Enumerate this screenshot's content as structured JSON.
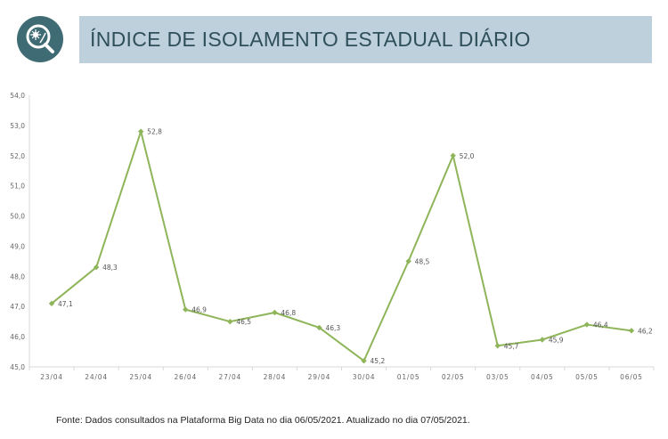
{
  "header": {
    "logo_icon": "virus-search-icon",
    "title": "ÍNDICE DE ISOLAMENTO ESTADUAL DIÁRIO"
  },
  "colors": {
    "accent": "#8fb55a",
    "title_bar": "#bdd0db",
    "logo": "#3f6b74"
  },
  "chart_data": {
    "type": "line",
    "title": "",
    "xlabel": "",
    "ylabel": "",
    "categories": [
      "23/04",
      "24/04",
      "25/04",
      "26/04",
      "27/04",
      "28/04",
      "29/04",
      "30/04",
      "01/05",
      "02/05",
      "03/05",
      "04/05",
      "05/05",
      "06/05"
    ],
    "series": [
      {
        "values": [
          47.1,
          48.3,
          52.8,
          46.9,
          46.5,
          46.8,
          46.3,
          45.2,
          48.5,
          52.0,
          45.7,
          45.9,
          46.4,
          46.2
        ],
        "labels": [
          "47,1",
          "48,3",
          "52,8",
          "46,9",
          "46,5",
          "46,8",
          "46,3",
          "45,2",
          "48,5",
          "52,0",
          "45,7",
          "45,9",
          "46,4",
          "46,2"
        ]
      }
    ],
    "ylim": [
      45,
      54
    ],
    "yticks": [
      45,
      46,
      47,
      48,
      49,
      50,
      51,
      52,
      53,
      54
    ],
    "ytick_labels": [
      "45,0",
      "46,0",
      "47,0",
      "48,0",
      "49,0",
      "50,0",
      "51,0",
      "52,0",
      "53,0",
      "54,0"
    ],
    "grid": false,
    "legend": "none"
  },
  "footer": {
    "source": "Fonte: Dados consultados na Plataforma Big Data no dia 06/05/2021. Atualizado no dia 07/05/2021."
  }
}
